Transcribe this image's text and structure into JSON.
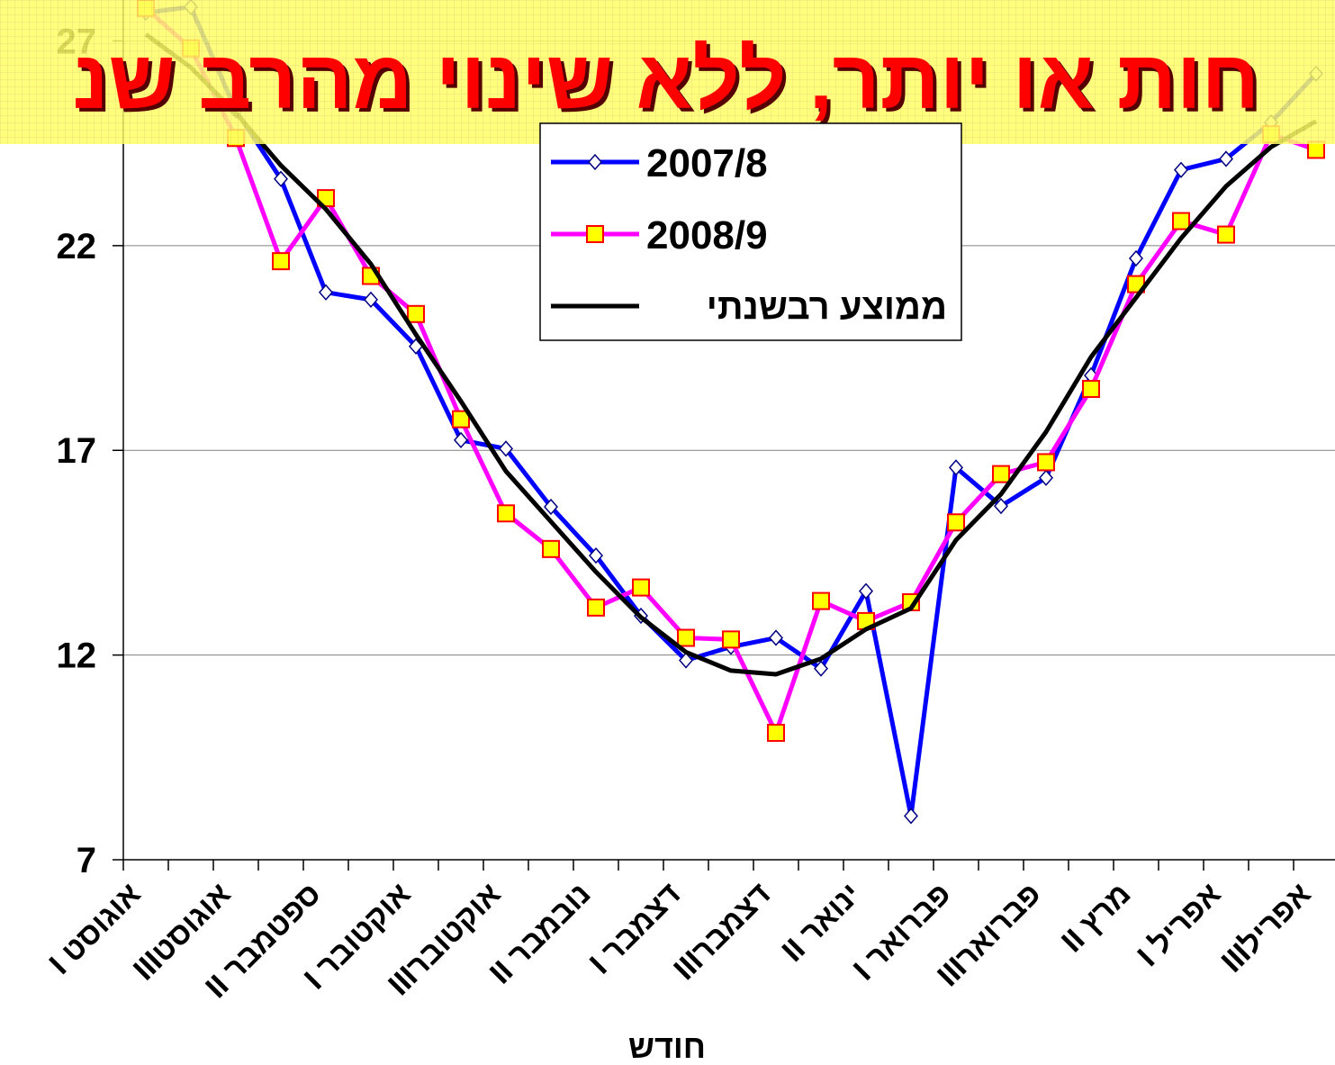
{
  "chart_data": {
    "type": "line",
    "title": "חות או יותר, ללא שינוי מהרב שנ",
    "x_label": "חודש",
    "categories": [
      "אוגוסט I",
      null,
      "אוגוסטIII",
      null,
      "ספטמבר II",
      null,
      "אוקטובר I",
      null,
      "אוקטוברIII",
      null,
      "נובמבר II",
      null,
      "דצמבר I",
      null,
      "דצמברIII",
      null,
      "ינואר II",
      null,
      "פברואר I",
      null,
      "פברוארIII",
      null,
      "מרץ II",
      null,
      "אפריל I",
      null,
      "אפרילIII"
    ],
    "ylim": [
      7,
      28
    ],
    "yticks": [
      7,
      12,
      17,
      22,
      27
    ],
    "grid": true,
    "legend": "top-center",
    "series": [
      {
        "name": "2007/8",
        "color": "#0000ff",
        "marker": "diamond",
        "values": [
          27.69,
          27.83,
          25.3,
          23.63,
          20.86,
          20.68,
          19.54,
          17.25,
          17.04,
          15.62,
          14.43,
          12.96,
          11.87,
          12.2,
          12.42,
          11.67,
          13.56,
          8.07,
          16.58,
          15.64,
          16.33,
          18.83,
          21.69,
          23.85,
          24.12,
          25.01,
          26.2
        ]
      },
      {
        "name": "2008/9",
        "color": "#ff00ff",
        "marker": "square",
        "values": [
          27.8,
          26.82,
          24.63,
          21.62,
          23.16,
          21.26,
          20.33,
          17.76,
          15.46,
          14.59,
          13.16,
          13.65,
          12.42,
          12.38,
          10.1,
          13.32,
          12.83,
          13.29,
          15.24,
          16.42,
          16.71,
          18.5,
          21.06,
          22.6,
          22.27,
          24.72,
          24.34
        ]
      },
      {
        "name": "ממוצע רבשנתי",
        "color": "#000000",
        "marker": "none",
        "values": [
          27.16,
          26.35,
          25.24,
          23.96,
          22.89,
          21.55,
          19.83,
          18.2,
          16.49,
          15.26,
          14.03,
          12.92,
          12.07,
          11.62,
          11.53,
          11.91,
          12.63,
          13.14,
          14.81,
          15.93,
          17.45,
          19.28,
          20.73,
          22.18,
          23.45,
          24.41,
          25.04
        ]
      }
    ]
  }
}
